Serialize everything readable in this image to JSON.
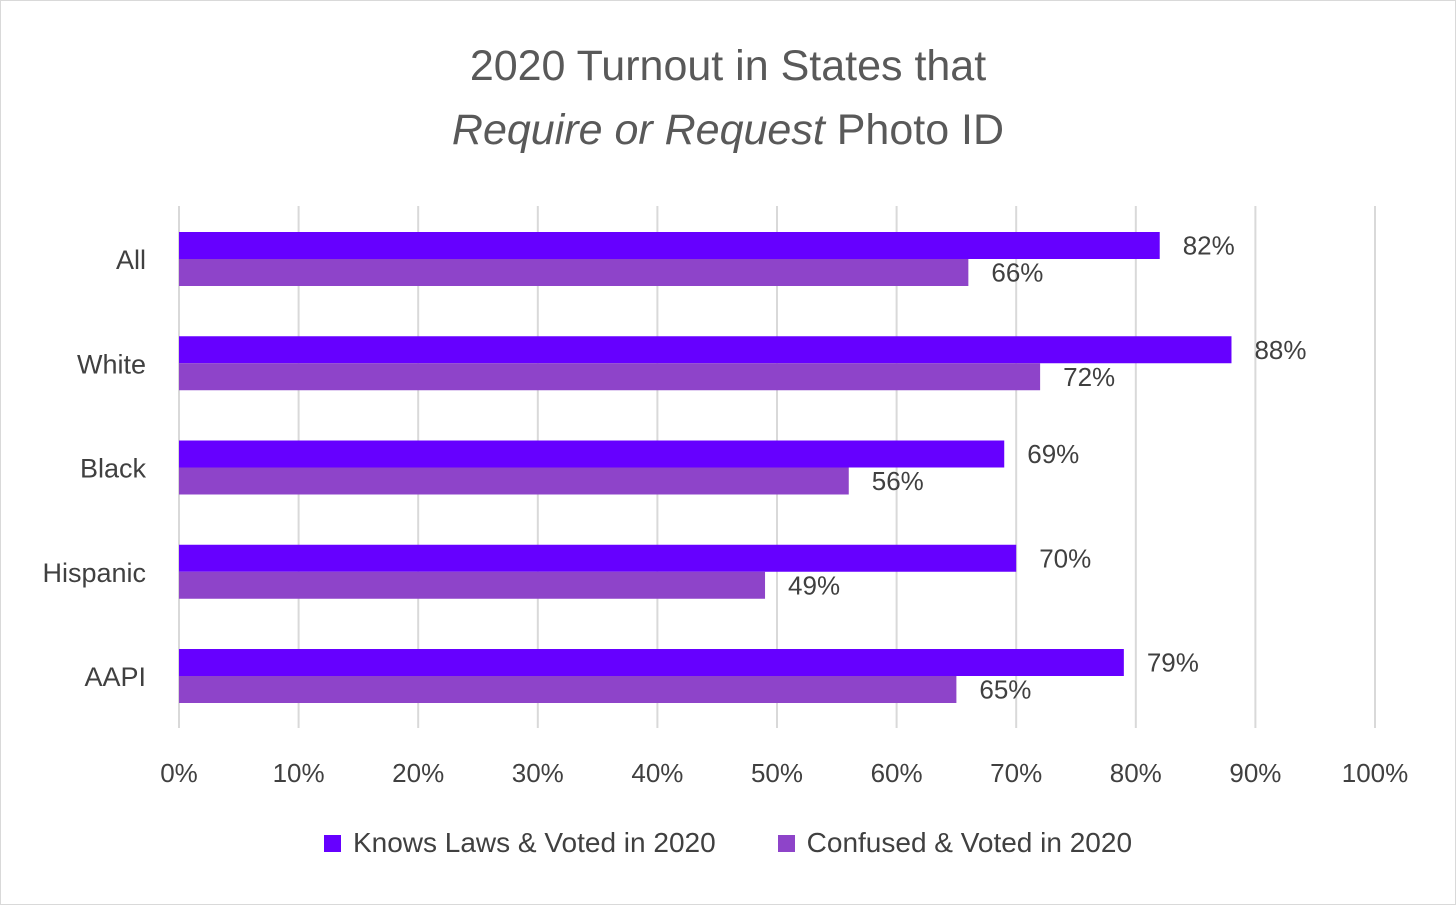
{
  "chart_data": {
    "type": "bar",
    "orientation": "horizontal",
    "title": {
      "line1": "2020 Turnout in States that",
      "line2_italic": "Require or Request",
      "line2_rest": " Photo ID"
    },
    "categories": [
      "All",
      "White",
      "Black",
      "Hispanic",
      "AAPI"
    ],
    "series": [
      {
        "name": "Knows Laws & Voted in 2020",
        "color": "#6600ff",
        "values": [
          82,
          88,
          69,
          70,
          79
        ],
        "labels": [
          "82%",
          "88%",
          "69%",
          "70%",
          "79%"
        ]
      },
      {
        "name": "Confused & Voted in 2020",
        "color": "#8e44c9",
        "values": [
          66,
          72,
          56,
          49,
          65
        ],
        "labels": [
          "66%",
          "72%",
          "56%",
          "49%",
          "65%"
        ]
      }
    ],
    "x_ticks": [
      "0%",
      "10%",
      "20%",
      "30%",
      "40%",
      "50%",
      "60%",
      "70%",
      "80%",
      "90%",
      "100%"
    ],
    "xlim": [
      0,
      100
    ],
    "grid": true,
    "legend_position": "bottom"
  }
}
